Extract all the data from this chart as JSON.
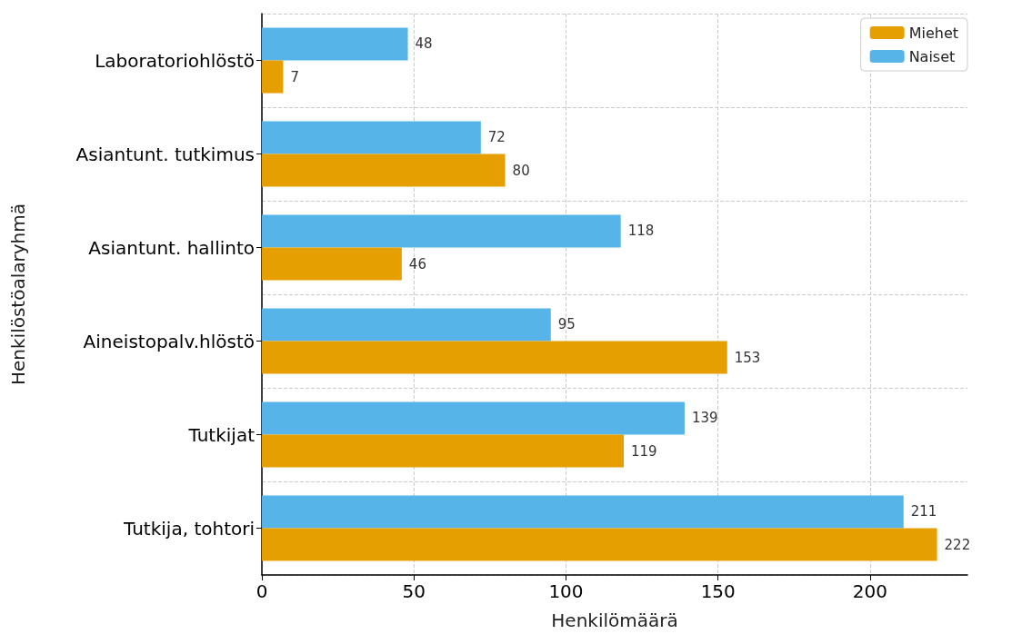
{
  "chart_data": {
    "type": "bar",
    "orientation": "horizontal",
    "xlabel": "Henkilömäärä",
    "ylabel": "Henkilöstöalaryhmä",
    "categories": [
      "Laboratoriohlöstö",
      "Asiantunt. tutkimus",
      "Asiantunt. hallinto",
      "Aineistopalv.hlöstö",
      "Tutkijat",
      "Tutkija, tohtori"
    ],
    "series": [
      {
        "name": "Miehet",
        "color": "#e69f00",
        "values": [
          7,
          80,
          46,
          153,
          119,
          222
        ]
      },
      {
        "name": "Naiset",
        "color": "#56b4e9",
        "values": [
          48,
          72,
          118,
          95,
          139,
          211
        ]
      }
    ],
    "xlim": [
      0,
      232
    ],
    "xticks": [
      0,
      50,
      100,
      150,
      200
    ],
    "grid": true,
    "legend": "top right",
    "data_labels": true
  }
}
